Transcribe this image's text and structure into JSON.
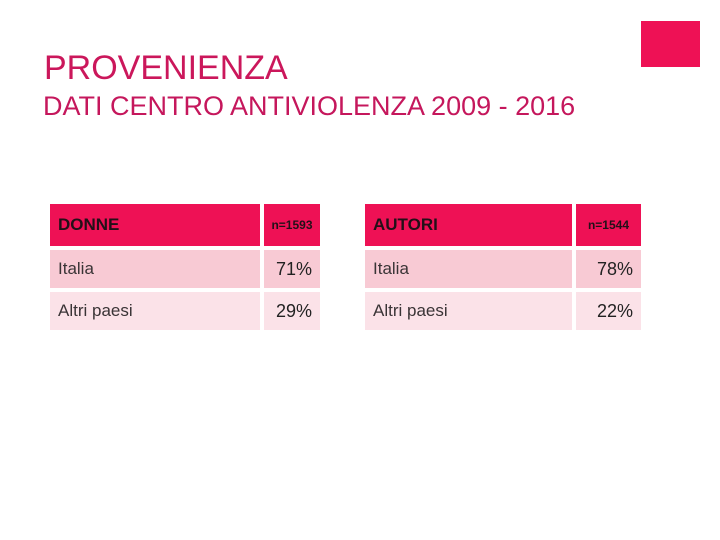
{
  "slide": {
    "title": "PROVENIENZA",
    "subtitle": "DATI CENTRO ANTIVIOLENZA 2009 - 2016"
  },
  "colors": {
    "accent": "#EE1155",
    "title_text": "#CB175B",
    "header_row_bg": "#EE1155",
    "header_row_text": "#221018",
    "row_odd_bg": "#F8CAD4",
    "row_even_bg": "#FBE2E8",
    "body_text": "#3A3436"
  },
  "tables": [
    {
      "header": {
        "label": "DONNE",
        "n": "n=1593"
      },
      "rows": [
        {
          "label": "Italia",
          "value": "71%"
        },
        {
          "label": "Altri paesi",
          "value": "29%"
        }
      ]
    },
    {
      "header": {
        "label": "AUTORI",
        "n": "n=1544"
      },
      "rows": [
        {
          "label": "Italia",
          "value": "78%"
        },
        {
          "label": "Altri paesi",
          "value": "22%"
        }
      ]
    }
  ],
  "chart_data": {
    "type": "table",
    "title": "PROVENIENZA - DATI CENTRO ANTIVIOLENZA 2009 - 2016",
    "tables": [
      {
        "name": "DONNE",
        "sample_size": 1593,
        "categories": [
          "Italia",
          "Altri paesi"
        ],
        "values_percent": [
          71,
          29
        ]
      },
      {
        "name": "AUTORI",
        "sample_size": 1544,
        "categories": [
          "Italia",
          "Altri paesi"
        ],
        "values_percent": [
          78,
          22
        ]
      }
    ]
  }
}
